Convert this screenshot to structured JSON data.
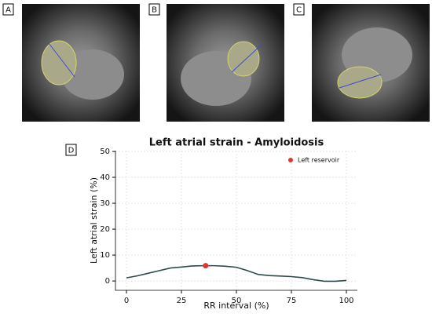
{
  "panels": [
    "A",
    "B",
    "C",
    "D"
  ],
  "chart_data": {
    "type": "line",
    "title": "Left atrial strain - Amyloidosis",
    "x_label": "RR interval (%)",
    "y_label": "Left atrial strain (%)",
    "xlim": [
      -5,
      105
    ],
    "ylim": [
      -3.6,
      50.3
    ],
    "xticks": [
      0,
      25,
      50,
      75,
      100
    ],
    "yticks": [
      0,
      10,
      20,
      30,
      40,
      50
    ],
    "grid": true,
    "series": [
      {
        "color": "#2f4a4a",
        "x": [
          0,
          5,
          10,
          15,
          20,
          25,
          30,
          35,
          40,
          45,
          50,
          55,
          60,
          65,
          70,
          75,
          80,
          85,
          90,
          95,
          100
        ],
        "values": [
          1.2,
          2,
          3,
          4,
          5,
          5.4,
          5.8,
          5.9,
          5.9,
          5.7,
          5.3,
          4,
          2.5,
          2.1,
          1.9,
          1.7,
          1.3,
          0.5,
          -0.1,
          -0.1,
          0.2
        ]
      }
    ],
    "points": [
      {
        "name": "Left reservoir",
        "x": 36,
        "y": 5.9,
        "color": "#e0362b"
      }
    ],
    "legend": "upper right"
  }
}
